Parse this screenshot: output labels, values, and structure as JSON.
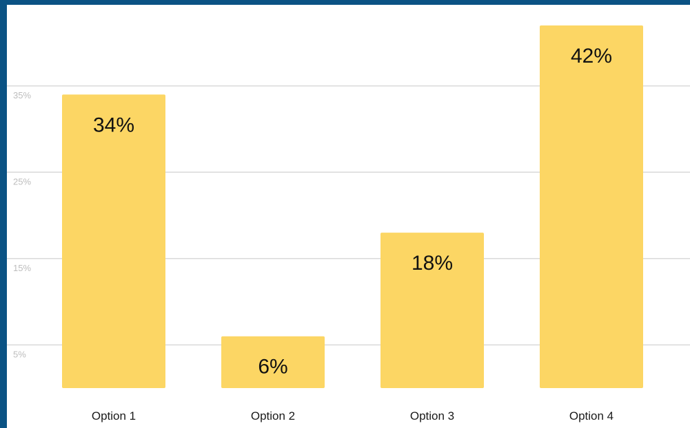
{
  "chart_data": {
    "type": "bar",
    "categories": [
      "Option 1",
      "Option 2",
      "Option 3",
      "Option 4"
    ],
    "values": [
      34,
      6,
      18,
      42
    ],
    "data_labels": [
      "34%",
      "6%",
      "18%",
      "42%"
    ],
    "yticks": [
      5,
      15,
      25,
      35
    ],
    "ytick_labels": [
      "5%",
      "15%",
      "25%",
      "35%"
    ],
    "ylim": [
      0,
      42
    ],
    "grid": true,
    "bar_color": "#fcd664",
    "frame_color": "#0b5384"
  }
}
